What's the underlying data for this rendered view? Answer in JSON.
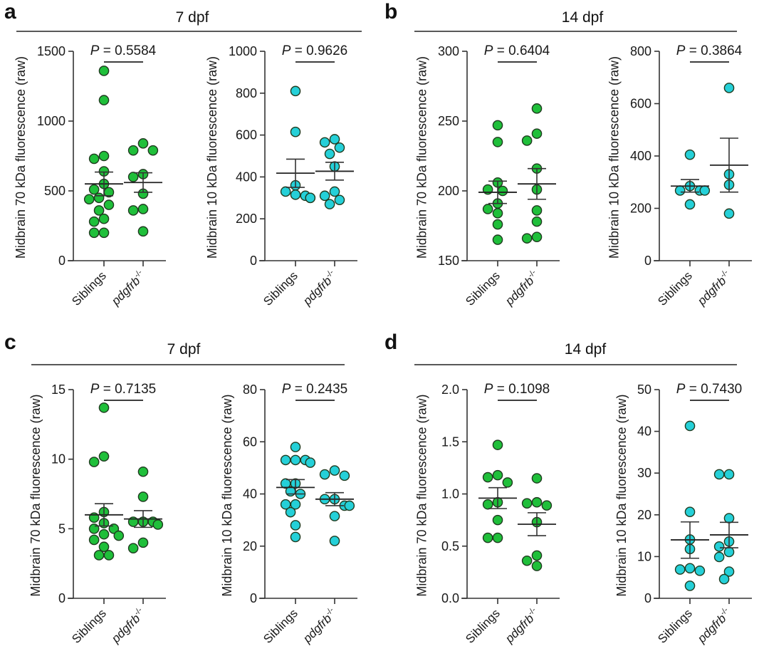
{
  "figure": {
    "panels": [
      {
        "id": "a",
        "label": "a",
        "group_title": "7 dpf"
      },
      {
        "id": "b",
        "label": "b",
        "group_title": "14 dpf"
      },
      {
        "id": "c",
        "label": "c",
        "group_title": "7 dpf"
      },
      {
        "id": "d",
        "label": "d",
        "group_title": "14 dpf"
      }
    ],
    "colors": {
      "green": "#1fbf3a",
      "cyan": "#25d0d8",
      "outline": "#1e2a22"
    }
  },
  "chart_data": [
    {
      "panel": "a",
      "type": "scatter",
      "title": "",
      "ylabel": "Midbrain 70 kDa fluorescence (raw)",
      "categories": [
        "Siblings",
        "pdgfrb-/-"
      ],
      "ylim": [
        0,
        1500
      ],
      "yticks": [
        "0",
        "500",
        "1000",
        "1500"
      ],
      "p_value": "0.5584",
      "color": "green",
      "series": [
        {
          "name": "Siblings",
          "values": [
            1360,
            1150,
            750,
            730,
            640,
            550,
            510,
            490,
            450,
            440,
            400,
            360,
            300,
            280,
            200,
            200
          ],
          "mean": 550,
          "sem_low": 465,
          "sem_high": 635
        },
        {
          "name": "pdgfrb-/-",
          "values": [
            840,
            790,
            790,
            620,
            600,
            480,
            370,
            360,
            210
          ],
          "mean": 560,
          "sem_low": 490,
          "sem_high": 630
        }
      ]
    },
    {
      "panel": "a",
      "type": "scatter",
      "title": "",
      "ylabel": "Midbrain 10 kDa fluorescence (raw)",
      "categories": [
        "Siblings",
        "pdgfrb-/-"
      ],
      "ylim": [
        0,
        1000
      ],
      "yticks": [
        "0",
        "200",
        "400",
        "600",
        "800",
        "1000"
      ],
      "p_value": "0.9626",
      "color": "cyan",
      "series": [
        {
          "name": "Siblings",
          "values": [
            810,
            615,
            360,
            330,
            315,
            310,
            300,
            300
          ],
          "mean": 418,
          "sem_low": 350,
          "sem_high": 485
        },
        {
          "name": "pdgfrb-/-",
          "values": [
            580,
            565,
            540,
            510,
            450,
            330,
            310,
            290,
            270
          ],
          "mean": 427,
          "sem_low": 385,
          "sem_high": 470
        }
      ]
    },
    {
      "panel": "b",
      "type": "scatter",
      "title": "",
      "ylabel": "Midbrain 70 kDa fluorescence (raw)",
      "categories": [
        "Siblings",
        "pdgfrb-/-"
      ],
      "ylim": [
        150,
        300
      ],
      "yticks": [
        "150",
        "200",
        "250",
        "300"
      ],
      "p_value": "0.6404",
      "color": "green",
      "series": [
        {
          "name": "Siblings",
          "values": [
            247,
            235,
            206,
            201,
            200,
            191,
            187,
            184,
            176,
            165
          ],
          "mean": 199,
          "sem_low": 191,
          "sem_high": 207
        },
        {
          "name": "pdgfrb-/-",
          "values": [
            259,
            241,
            236,
            216,
            201,
            186,
            178,
            167,
            166
          ],
          "mean": 205,
          "sem_low": 194,
          "sem_high": 216
        }
      ]
    },
    {
      "panel": "b",
      "type": "scatter",
      "title": "",
      "ylabel": "Midbrain 10 kDa fluorescence (raw)",
      "categories": [
        "Siblings",
        "pdgfrb-/-"
      ],
      "ylim": [
        0,
        800
      ],
      "yticks": [
        "0",
        "200",
        "400",
        "600",
        "800"
      ],
      "p_value": "0.3864",
      "color": "cyan",
      "series": [
        {
          "name": "Siblings",
          "values": [
            405,
            285,
            268,
            268,
            268,
            215
          ],
          "mean": 285,
          "sem_low": 262,
          "sem_high": 310
        },
        {
          "name": "pdgfrb-/-",
          "values": [
            660,
            330,
            290,
            180
          ],
          "mean": 365,
          "sem_low": 262,
          "sem_high": 468
        }
      ]
    },
    {
      "panel": "c",
      "type": "scatter",
      "title": "",
      "ylabel": "Midbrain 70 kDa fluorescence (raw)",
      "categories": [
        "Siblings",
        "pdgfrb-/-"
      ],
      "ylim": [
        0,
        15
      ],
      "yticks": [
        "0",
        "5",
        "10",
        "15"
      ],
      "p_value": "0.7135",
      "color": "green",
      "series": [
        {
          "name": "Siblings",
          "values": [
            13.7,
            10.2,
            9.8,
            6.2,
            5.8,
            5.4,
            5.0,
            5.0,
            4.6,
            4.5,
            4.2,
            3.7,
            3.1,
            3.1
          ],
          "mean": 6.0,
          "sem_low": 5.2,
          "sem_high": 6.8
        },
        {
          "name": "pdgfrb-/-",
          "values": [
            9.1,
            7.3,
            5.5,
            5.5,
            5.5,
            5.3,
            4.0,
            3.6
          ],
          "mean": 5.7,
          "sem_low": 5.1,
          "sem_high": 6.3
        }
      ]
    },
    {
      "panel": "c",
      "type": "scatter",
      "title": "",
      "ylabel": "Midbrain 10 kDa fluorescence (raw)",
      "categories": [
        "Siblings",
        "pdgfrb-/-"
      ],
      "ylim": [
        0,
        80
      ],
      "yticks": [
        "0",
        "20",
        "40",
        "60",
        "80"
      ],
      "p_value": "0.2435",
      "color": "cyan",
      "series": [
        {
          "name": "Siblings",
          "values": [
            58,
            53,
            53,
            53,
            52,
            44,
            44,
            41,
            40,
            36,
            36,
            33,
            28,
            23.5
          ],
          "mean": 42.5,
          "sem_low": 40,
          "sem_high": 45.5
        },
        {
          "name": "pdgfrb-/-",
          "values": [
            49,
            47.5,
            47,
            38,
            38,
            35.5,
            35.5,
            31.5,
            22
          ],
          "mean": 38,
          "sem_low": 35.5,
          "sem_high": 40.5
        }
      ]
    },
    {
      "panel": "d",
      "type": "scatter",
      "title": "",
      "ylabel": "Midbrain 70 kDa fluorescence (raw)",
      "categories": [
        "Siblings",
        "pdgfrb-/-"
      ],
      "ylim": [
        0,
        2.0
      ],
      "yticks": [
        "0.0",
        "0.5",
        "1.0",
        "1.5",
        "2.0"
      ],
      "p_value": "0.1098",
      "color": "green",
      "series": [
        {
          "name": "Siblings",
          "values": [
            1.47,
            1.18,
            1.16,
            1.11,
            0.92,
            0.9,
            0.75,
            0.58,
            0.58
          ],
          "mean": 0.96,
          "sem_low": 0.86,
          "sem_high": 1.06
        },
        {
          "name": "pdgfrb-/-",
          "values": [
            1.15,
            0.92,
            0.91,
            0.89,
            0.73,
            0.41,
            0.36,
            0.31
          ],
          "mean": 0.71,
          "sem_low": 0.6,
          "sem_high": 0.82
        },
        {
          "name": "_",
          "values": []
        }
      ]
    },
    {
      "panel": "d",
      "type": "scatter",
      "title": "",
      "ylabel": "Midbrain 10 kDa fluorescence (raw)",
      "categories": [
        "Siblings",
        "pdgfrb-/-"
      ],
      "ylim": [
        0,
        50
      ],
      "yticks": [
        "0",
        "10",
        "20",
        "30",
        "40",
        "50"
      ],
      "p_value": "0.7430",
      "color": "cyan",
      "series": [
        {
          "name": "Siblings",
          "values": [
            41.3,
            20.7,
            14.1,
            11.8,
            7.2,
            6.9,
            6.6,
            3.0
          ],
          "mean": 14.0,
          "sem_low": 9.6,
          "sem_high": 18.3
        },
        {
          "name": "pdgfrb-/-",
          "values": [
            29.7,
            29.7,
            19.2,
            13.6,
            12.4,
            11.1,
            9.9,
            6.4,
            4.6
          ],
          "mean": 15.2,
          "sem_low": 12.1,
          "sem_high": 18.2
        }
      ]
    }
  ],
  "labels": {
    "p_prefix": "P",
    "p_eq": " = ",
    "cat_sib": "Siblings",
    "cat_mut_base": "pdgfrb",
    "cat_mut_sup": "-/-"
  }
}
